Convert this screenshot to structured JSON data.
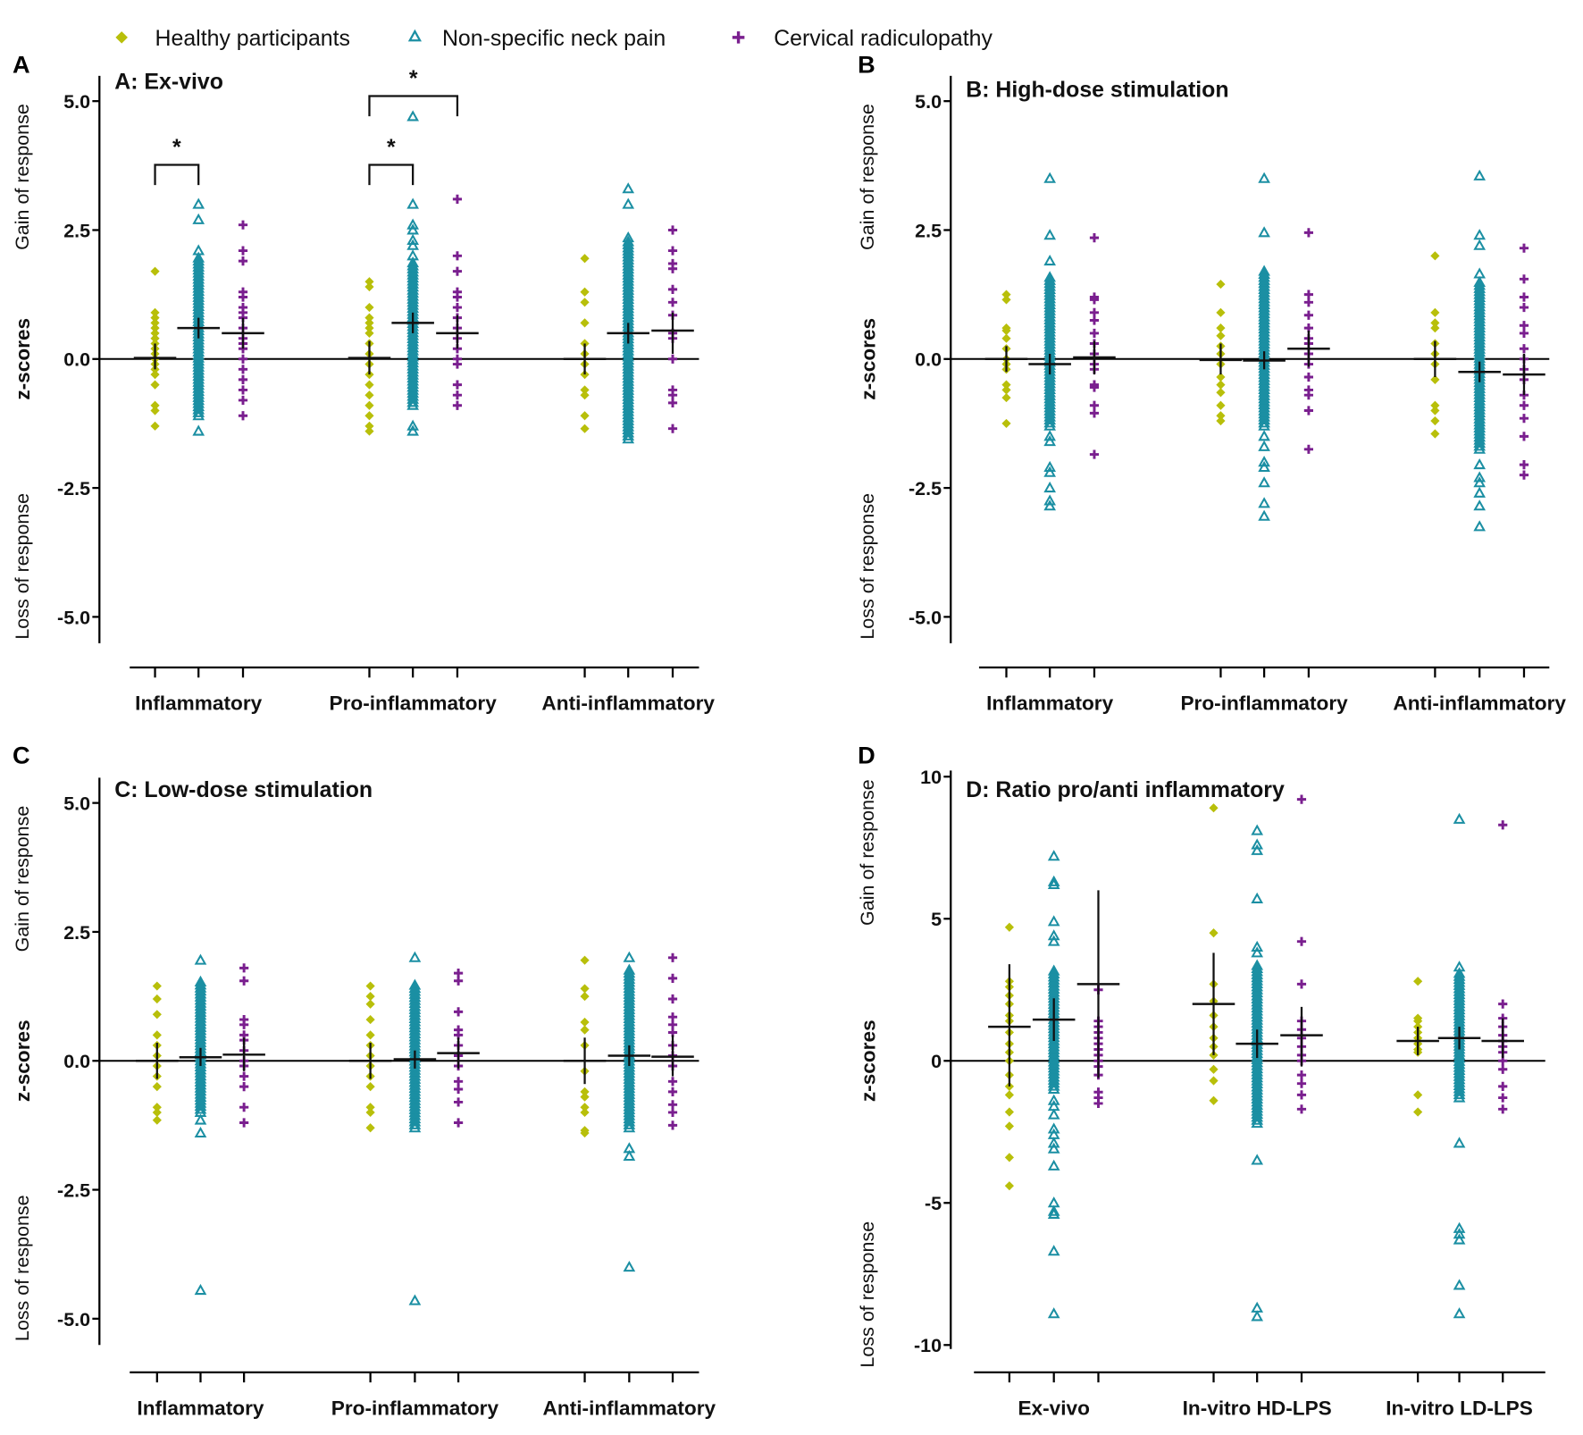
{
  "legend": [
    {
      "label": "Healthy participants",
      "marker": "diamond",
      "color": "#b8bf0a"
    },
    {
      "label": "Non-specific neck pain",
      "marker": "triangle-open",
      "color": "#1b8fa3"
    },
    {
      "label": "Cervical radiculopathy",
      "marker": "plus",
      "color": "#7a1f8f"
    }
  ],
  "y_axis_labels": {
    "gain": "Gain of response",
    "z": "z-scores",
    "loss": "Loss of response"
  },
  "chart_data": [
    {
      "letter": "A",
      "title": "A:  Ex-vivo",
      "type": "scatter",
      "ylim": [
        -5.5,
        5.5
      ],
      "yticks": [
        5,
        2.5,
        0,
        -2.5,
        -5
      ],
      "ytick_labels": [
        "5.0",
        "2.5",
        "0.0",
        "-2.5",
        "-5.0"
      ],
      "categories": [
        "Inflammatory",
        "Pro-inflammatory",
        "Anti-inflammatory"
      ],
      "significance": [
        {
          "category": 0,
          "from": 0,
          "to": 1,
          "level": 1,
          "label": "*"
        },
        {
          "category": 1,
          "from": 0,
          "to": 1,
          "level": 1,
          "label": "*"
        },
        {
          "category": 1,
          "from": 0,
          "to": 2,
          "level": 2,
          "label": "*"
        }
      ],
      "groups": [
        [
          {
            "mean": 0.02,
            "ci": [
              -0.2,
              0.3
            ],
            "points": [
              1.7,
              0.9,
              0.8,
              0.7,
              0.6,
              0.5,
              0.4,
              0.3,
              0.2,
              0.1,
              0,
              -0.1,
              -0.2,
              -0.3,
              -0.5,
              -0.9,
              -1.0,
              -1.3
            ]
          },
          {
            "mean": 0.6,
            "ci": [
              0.4,
              0.8
            ],
            "dense": [
              -1.1,
              2.0
            ],
            "points": [
              3.0,
              2.7,
              2.1,
              -1.4
            ]
          },
          {
            "mean": 0.5,
            "ci": [
              0.2,
              0.8
            ],
            "points": [
              2.6,
              2.1,
              1.9,
              1.3,
              1.2,
              1.0,
              0.9,
              0.8,
              0.6,
              0.4,
              0.3,
              0.2,
              0,
              -0.2,
              -0.4,
              -0.6,
              -0.8,
              -1.1
            ]
          }
        ],
        [
          {
            "mean": 0.02,
            "ci": [
              -0.3,
              0.35
            ],
            "points": [
              1.5,
              1.4,
              1.0,
              0.8,
              0.7,
              0.6,
              0.5,
              0.3,
              0.1,
              -0.1,
              -0.3,
              -0.5,
              -0.7,
              -0.9,
              -1.1,
              -1.3,
              -1.4
            ]
          },
          {
            "mean": 0.7,
            "ci": [
              0.5,
              0.9
            ],
            "dense": [
              -0.9,
              1.9
            ],
            "points": [
              4.7,
              3.0,
              2.6,
              2.5,
              2.3,
              2.2,
              2.0,
              -1.3,
              -1.4
            ]
          },
          {
            "mean": 0.5,
            "ci": [
              0.2,
              0.85
            ],
            "points": [
              3.1,
              2.0,
              1.7,
              1.3,
              1.2,
              1.0,
              0.8,
              0.6,
              0.4,
              0.2,
              0,
              -0.1,
              -0.5,
              -0.7,
              -0.9
            ]
          }
        ],
        [
          {
            "mean": 0.0,
            "ci": [
              -0.3,
              0.3
            ],
            "points": [
              1.95,
              1.3,
              1.1,
              0.7,
              0.3,
              0.1,
              -0.1,
              -0.3,
              -0.6,
              -0.7,
              -1.1,
              -1.35
            ]
          },
          {
            "mean": 0.5,
            "ci": [
              0.3,
              0.7
            ],
            "dense": [
              -1.55,
              2.3
            ],
            "points": [
              3.3,
              3.0,
              2.35
            ]
          },
          {
            "mean": 0.55,
            "ci": [
              0.1,
              0.9
            ],
            "points": [
              2.5,
              2.1,
              1.85,
              1.75,
              1.35,
              1.1,
              0.85,
              0.5,
              0.4,
              0,
              -0.6,
              -0.7,
              -0.85,
              -1.35
            ]
          }
        ]
      ]
    },
    {
      "letter": "B",
      "title": "B: High-dose stimulation",
      "type": "scatter",
      "ylim": [
        -5.5,
        5.5
      ],
      "yticks": [
        5,
        2.5,
        0,
        -2.5,
        -5
      ],
      "ytick_labels": [
        "5.0",
        "2.5",
        "0.0",
        "-2.5",
        "-5.0"
      ],
      "categories": [
        "Inflammatory",
        "Pro-inflammatory",
        "Anti-inflammatory"
      ],
      "significance": [],
      "groups": [
        [
          {
            "mean": 0.0,
            "ci": [
              -0.25,
              0.25
            ],
            "points": [
              1.25,
              1.15,
              0.6,
              0.55,
              0.4,
              0.2,
              0,
              -0.1,
              -0.2,
              -0.5,
              -0.6,
              -0.75,
              -1.25
            ]
          },
          {
            "mean": -0.1,
            "ci": [
              -0.3,
              0.1
            ],
            "dense": [
              -1.3,
              1.6
            ],
            "points": [
              3.5,
              2.4,
              1.9,
              -1.5,
              -1.6,
              -2.1,
              -2.2,
              -2.5,
              -2.75,
              -2.85
            ]
          },
          {
            "mean": 0.03,
            "ci": [
              -0.3,
              0.35
            ],
            "points": [
              2.35,
              1.2,
              1.15,
              0.9,
              0.75,
              0.5,
              0.3,
              0.1,
              -0.1,
              -0.2,
              -0.5,
              -0.55,
              -0.9,
              -1.05,
              -1.85
            ]
          }
        ],
        [
          {
            "mean": -0.02,
            "ci": [
              -0.3,
              0.3
            ],
            "points": [
              1.45,
              0.9,
              0.6,
              0.45,
              0.25,
              0.1,
              -0.1,
              -0.35,
              -0.5,
              -0.65,
              -0.9,
              -1.1,
              -1.2
            ]
          },
          {
            "mean": -0.03,
            "ci": [
              -0.2,
              0.15
            ],
            "dense": [
              -1.3,
              1.75
            ],
            "points": [
              3.5,
              2.45,
              -1.5,
              -1.7,
              -2.0,
              -2.1,
              -2.4,
              -2.8,
              -3.05
            ]
          },
          {
            "mean": 0.2,
            "ci": [
              -0.15,
              0.55
            ],
            "points": [
              2.45,
              1.25,
              1.1,
              0.85,
              0.6,
              0.4,
              0.3,
              0.1,
              -0.1,
              -0.35,
              -0.6,
              -0.7,
              -1.0,
              -1.75
            ]
          }
        ],
        [
          {
            "mean": 0.0,
            "ci": [
              -0.35,
              0.35
            ],
            "points": [
              2.0,
              0.9,
              0.7,
              0.6,
              0.3,
              0.1,
              -0.1,
              -0.4,
              -0.9,
              -1.0,
              -1.2,
              -1.45
            ]
          },
          {
            "mean": -0.25,
            "ci": [
              -0.45,
              -0.05
            ],
            "dense": [
              -1.75,
              1.5
            ],
            "points": [
              3.55,
              2.4,
              2.2,
              1.65,
              -2.05,
              -2.3,
              -2.4,
              -2.6,
              -2.85,
              -3.25
            ]
          },
          {
            "mean": -0.3,
            "ci": [
              -0.7,
              0.1
            ],
            "points": [
              2.15,
              1.55,
              1.2,
              1.0,
              0.65,
              0.5,
              0.2,
              0,
              -0.2,
              -0.4,
              -0.7,
              -0.9,
              -1.15,
              -1.5,
              -2.05,
              -2.25
            ]
          }
        ]
      ]
    },
    {
      "letter": "C",
      "title": "C: Low-dose stimulation",
      "type": "scatter",
      "ylim": [
        -5.5,
        5.5
      ],
      "yticks": [
        5,
        2.5,
        0,
        -2.5,
        -5
      ],
      "ytick_labels": [
        "5.0",
        "2.5",
        "0.0",
        "-2.5",
        "-5.0"
      ],
      "categories": [
        "Inflammatory",
        "Pro-inflammatory",
        "Anti-inflammatory"
      ],
      "significance": [],
      "groups": [
        [
          {
            "mean": 0.0,
            "ci": [
              -0.35,
              0.35
            ],
            "points": [
              1.45,
              1.2,
              0.9,
              0.5,
              0.3,
              0.1,
              -0.1,
              -0.3,
              -0.5,
              -0.9,
              -1.0,
              -1.15
            ]
          },
          {
            "mean": 0.07,
            "ci": [
              -0.1,
              0.25
            ],
            "dense": [
              -1.0,
              1.55
            ],
            "points": [
              1.95,
              -1.15,
              -1.4,
              -4.45
            ]
          },
          {
            "mean": 0.12,
            "ci": [
              -0.2,
              0.45
            ],
            "points": [
              1.8,
              1.55,
              0.8,
              0.7,
              0.5,
              0.4,
              0.2,
              0,
              -0.1,
              -0.3,
              -0.5,
              -0.9,
              -1.2
            ]
          }
        ],
        [
          {
            "mean": 0.0,
            "ci": [
              -0.35,
              0.35
            ],
            "points": [
              1.45,
              1.25,
              1.1,
              0.8,
              0.5,
              0.3,
              0.1,
              -0.1,
              -0.3,
              -0.5,
              -0.9,
              -1.0,
              -1.3
            ]
          },
          {
            "mean": 0.03,
            "ci": [
              -0.15,
              0.2
            ],
            "dense": [
              -1.3,
              1.5
            ],
            "points": [
              2.0,
              -4.65
            ]
          },
          {
            "mean": 0.15,
            "ci": [
              -0.15,
              0.45
            ],
            "points": [
              1.7,
              1.55,
              0.95,
              0.6,
              0.5,
              0.3,
              0.1,
              -0.1,
              -0.4,
              -0.55,
              -0.8,
              -1.2
            ]
          }
        ],
        [
          {
            "mean": 0.0,
            "ci": [
              -0.45,
              0.45
            ],
            "points": [
              1.95,
              1.4,
              1.25,
              0.75,
              0.6,
              0.3,
              -0.2,
              -0.6,
              -0.7,
              -0.9,
              -1.0,
              -1.35,
              -1.4
            ]
          },
          {
            "mean": 0.1,
            "ci": [
              -0.1,
              0.3
            ],
            "dense": [
              -1.3,
              1.8
            ],
            "points": [
              2.0,
              -1.7,
              -1.85,
              -4.0
            ]
          },
          {
            "mean": 0.08,
            "ci": [
              -0.3,
              0.5
            ],
            "points": [
              2.0,
              1.6,
              1.2,
              0.85,
              0.7,
              0.55,
              0.3,
              0.1,
              -0.1,
              -0.4,
              -0.6,
              -0.85,
              -1.0,
              -1.25
            ]
          }
        ]
      ]
    },
    {
      "letter": "D",
      "title": "D:  Ratio pro/anti inflammatory",
      "type": "scatter",
      "ylim": [
        -10.5,
        10
      ],
      "yticks": [
        10,
        5,
        0,
        -5,
        -10
      ],
      "ytick_labels": [
        "10",
        "5",
        "0",
        "-5",
        "-10"
      ],
      "categories": [
        "Ex-vivo",
        "In-vitro HD-LPS",
        "In-vitro LD-LPS"
      ],
      "significance": [],
      "groups": [
        [
          {
            "mean": 1.2,
            "ci": [
              -0.9,
              3.4
            ],
            "points": [
              4.7,
              2.8,
              2.6,
              2.3,
              2.0,
              1.6,
              1.4,
              1.0,
              0.6,
              0.3,
              0,
              -0.5,
              -0.9,
              -1.2,
              -1.8,
              -2.3,
              -3.4,
              -4.4
            ]
          },
          {
            "mean": 1.45,
            "ci": [
              0.7,
              2.2
            ],
            "dense": [
              -1.0,
              3.2
            ],
            "points": [
              7.2,
              6.3,
              6.2,
              4.9,
              4.4,
              4.2,
              -1.4,
              -1.6,
              -1.9,
              -2.4,
              -2.6,
              -2.9,
              -3.1,
              -3.7,
              -5.0,
              -5.3,
              -5.4,
              -6.7,
              -8.9
            ]
          },
          {
            "mean": 2.7,
            "ci": [
              -0.6,
              6.0
            ],
            "points": [
              2.5,
              1.4,
              1.2,
              1.0,
              0.8,
              0.6,
              0.4,
              0.2,
              0,
              -0.2,
              -0.5,
              -1.1,
              -1.3,
              -1.5
            ]
          }
        ],
        [
          {
            "mean": 2.0,
            "ci": [
              0.2,
              3.8
            ],
            "points": [
              8.9,
              4.5,
              2.7,
              2.1,
              1.6,
              1.2,
              0.8,
              0.5,
              0.2,
              -0.3,
              -0.7,
              -1.4
            ]
          },
          {
            "mean": 0.6,
            "ci": [
              0.1,
              1.1
            ],
            "dense": [
              -2.2,
              3.4
            ],
            "points": [
              8.1,
              7.6,
              7.4,
              5.7,
              4.0,
              3.8,
              -3.5,
              -8.7,
              -9.0
            ]
          },
          {
            "mean": 0.9,
            "ci": [
              -0.2,
              1.9
            ],
            "points": [
              9.2,
              4.2,
              2.7,
              1.4,
              1.1,
              0.8,
              0.5,
              0.2,
              0,
              -0.5,
              -0.8,
              -1.2,
              -1.7
            ]
          }
        ],
        [
          {
            "mean": 0.7,
            "ci": [
              0.2,
              1.2
            ],
            "points": [
              2.8,
              1.5,
              1.4,
              1.2,
              1.0,
              0.8,
              0.6,
              0.4,
              0.3,
              -1.2,
              -1.8
            ]
          },
          {
            "mean": 0.8,
            "ci": [
              0.4,
              1.2
            ],
            "dense": [
              -1.3,
              3.1
            ],
            "points": [
              8.5,
              3.3,
              -2.9,
              -5.9,
              -6.1,
              -6.3,
              -7.9,
              -8.9
            ]
          },
          {
            "mean": 0.7,
            "ci": [
              0.1,
              1.5
            ],
            "points": [
              8.3,
              2.0,
              1.5,
              1.2,
              0.9,
              0.7,
              0.5,
              0.3,
              0,
              -0.3,
              -0.9,
              -1.3,
              -1.7
            ]
          }
        ]
      ]
    }
  ]
}
